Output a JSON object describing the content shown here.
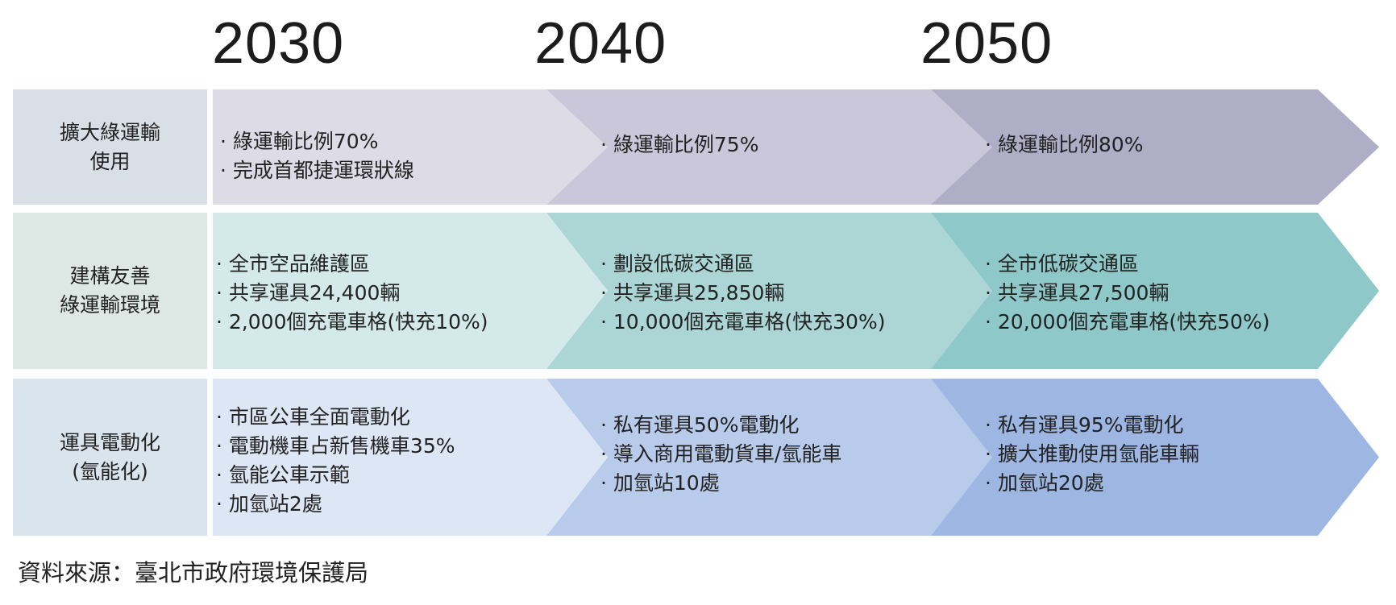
{
  "years": [
    "2030",
    "2040",
    "2050"
  ],
  "rows": [
    {
      "label": [
        "擴大綠運輸",
        "使用"
      ],
      "colors": {
        "label": "#d8dfe6",
        "c0": "#dcdbe6",
        "c1": "#c9c7d9",
        "c2": "#b0adc6"
      },
      "cells": [
        [
          "綠運輸比例70%",
          "完成首都捷運環狀線"
        ],
        [
          "綠運輸比例75%"
        ],
        [
          "綠運輸比例80%"
        ]
      ]
    },
    {
      "label": [
        "建構友善",
        "綠運輸環境"
      ],
      "colors": {
        "label": "#dde8e5",
        "c0": "#d3e9ea",
        "c1": "#acd6d6",
        "c2": "#8ec8c8"
      },
      "cells": [
        [
          "全市空品維護區",
          "共享運具24,400輛",
          "2,000個充電車格(快充10%)"
        ],
        [
          "劃設低碳交通區",
          "共享運具25,850輛",
          "10,000個充電車格(快充30%)"
        ],
        [
          "全市低碳交通區",
          "共享運具27,500輛",
          "20,000個充電車格(快充50%)"
        ]
      ]
    },
    {
      "label": [
        "運具電動化",
        "(氫能化)"
      ],
      "colors": {
        "label": "#d9e4ec",
        "c0": "#dde6f4",
        "c1": "#b9cbea",
        "c2": "#9db6e2"
      },
      "cells": [
        [
          "市區公車全面電動化",
          "電動機車占新售機車35%",
          "氫能公車示範",
          "加氫站2處"
        ],
        [
          "私有運具50%電動化",
          "導入商用電動貨車/氫能車",
          "加氫站10處"
        ],
        [
          "私有運具95%電動化",
          "擴大推動使用氫能車輛",
          "加氫站20處"
        ]
      ]
    }
  ],
  "source": "資料來源：臺北市政府環境保護局"
}
